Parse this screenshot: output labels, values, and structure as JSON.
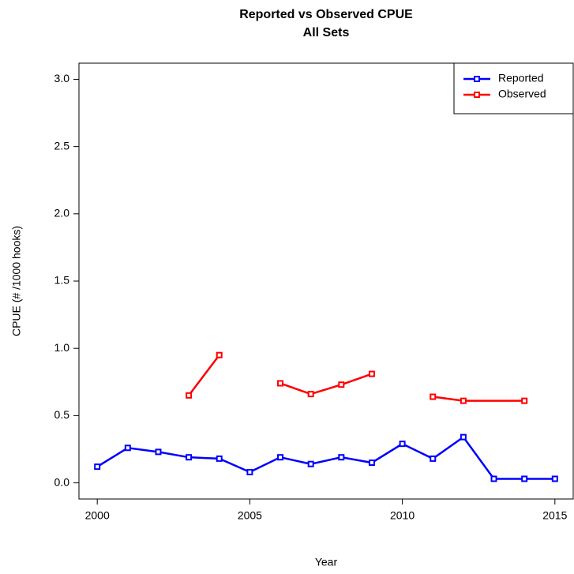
{
  "chart_data": {
    "type": "line",
    "title": "Reported vs Observed CPUE",
    "subtitle": "All Sets",
    "x_label": "Year",
    "y_label": "CPUE (# /1000 hooks)",
    "x": [
      2000,
      2001,
      2002,
      2003,
      2004,
      2005,
      2006,
      2007,
      2008,
      2009,
      2010,
      2011,
      2012,
      2013,
      2014,
      2015
    ],
    "series": [
      {
        "name": "Reported",
        "color": "#0000ff",
        "values": [
          0.12,
          0.26,
          0.23,
          0.19,
          0.18,
          0.08,
          0.19,
          0.14,
          0.19,
          0.15,
          0.29,
          0.18,
          0.34,
          0.03,
          0.03,
          0.03
        ]
      },
      {
        "name": "Observed",
        "color": "#ff0000",
        "x": [
          2003,
          2004,
          2005,
          2006,
          2007,
          2008,
          2009,
          2010,
          2011,
          2012,
          2014
        ],
        "values": [
          0.65,
          0.95,
          null,
          0.74,
          0.66,
          0.73,
          0.81,
          null,
          0.64,
          0.61,
          0.61
        ]
      }
    ],
    "xlim": [
      1999.4,
      2015.6
    ],
    "ylim": [
      -0.12,
      3.12
    ],
    "xticks": [
      2000,
      2005,
      2010,
      2015
    ],
    "yticks": [
      {
        "value": 0,
        "label": "0.0"
      },
      {
        "value": 0.5,
        "label": "0.5"
      },
      {
        "value": 1,
        "label": "1.0"
      },
      {
        "value": 1.5,
        "label": "1.5"
      },
      {
        "value": 2,
        "label": "2.0"
      },
      {
        "value": 2.5,
        "label": "2.5"
      },
      {
        "value": 3,
        "label": "3.0"
      }
    ],
    "legend": "top-right"
  }
}
